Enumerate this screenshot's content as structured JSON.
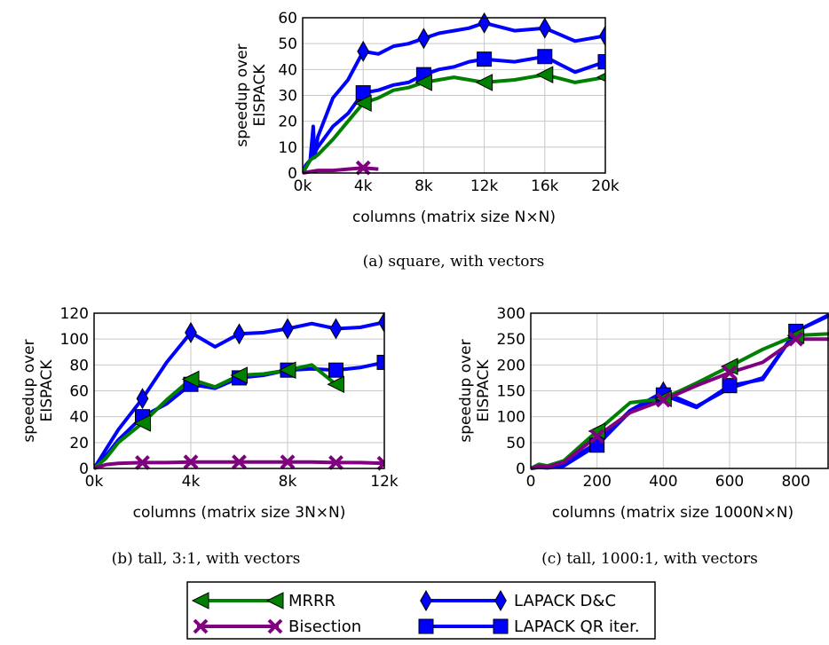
{
  "colors": {
    "mrrr": "#008000",
    "bisection": "#800080",
    "lapack_dc": "#0000FF",
    "lapack_qr": "#0000FF",
    "grid": "#C8C8C8"
  },
  "legend": {
    "items": [
      {
        "key": "mrrr",
        "label": "MRRR",
        "marker": "triangle-left-icon"
      },
      {
        "key": "lapack_dc",
        "label": "LAPACK D&C",
        "marker": "diamond-icon"
      },
      {
        "key": "bisection",
        "label": "Bisection",
        "marker": "x-icon"
      },
      {
        "key": "lapack_qr",
        "label": "LAPACK QR iter.",
        "marker": "square-icon"
      }
    ]
  },
  "chart_data": [
    {
      "type": "line",
      "caption": "(a) square, with vectors",
      "ylabel_lines": [
        "speedup over",
        "EISPACK"
      ],
      "xlabel": "columns (matrix size N×N)",
      "xlim": [
        0,
        20000
      ],
      "ylim": [
        0,
        60
      ],
      "xticks": [
        0,
        4000,
        8000,
        12000,
        16000,
        20000
      ],
      "xtick_labels": [
        "0k",
        "4k",
        "8k",
        "12k",
        "16k",
        "20k"
      ],
      "yticks": [
        0,
        10,
        20,
        30,
        40,
        50,
        60
      ],
      "ytick_labels": [
        "0",
        "10",
        "20",
        "30",
        "40",
        "50",
        "60"
      ],
      "grid": true,
      "series": [
        {
          "key": "mrrr",
          "name": "MRRR",
          "marker": "triangle-left",
          "x": [
            0,
            200,
            500,
            1000,
            2000,
            3000,
            4000,
            5000,
            6000,
            7000,
            8000,
            9000,
            10000,
            11000,
            12000,
            14000,
            16000,
            18000,
            20000
          ],
          "y": [
            0,
            2,
            5,
            7,
            13,
            20,
            27,
            29,
            32,
            33,
            35,
            36,
            37,
            36,
            35,
            36,
            38,
            35,
            37
          ],
          "markers_at": [
            4000,
            8000,
            12000,
            16000,
            20000
          ]
        },
        {
          "key": "lapack_dc",
          "name": "LAPACK D&C",
          "marker": "diamond",
          "x": [
            0,
            200,
            500,
            700,
            800,
            1000,
            2000,
            3000,
            4000,
            5000,
            6000,
            7000,
            8000,
            9000,
            10000,
            11000,
            12000,
            14000,
            16000,
            18000,
            20000
          ],
          "y": [
            0,
            3,
            5,
            18,
            6,
            14,
            29,
            36,
            47,
            46,
            49,
            50,
            52,
            54,
            55,
            56,
            58,
            55,
            56,
            51,
            53
          ],
          "markers_at": [
            4000,
            8000,
            12000,
            16000,
            20000
          ]
        },
        {
          "key": "lapack_qr",
          "name": "LAPACK QR iter.",
          "marker": "square",
          "x": [
            0,
            200,
            500,
            1000,
            2000,
            3000,
            4000,
            5000,
            6000,
            7000,
            8000,
            9000,
            10000,
            11000,
            12000,
            14000,
            16000,
            18000,
            20000
          ],
          "y": [
            0,
            2,
            5,
            10,
            18,
            23,
            31,
            32,
            34,
            35,
            38,
            40,
            41,
            43,
            44,
            43,
            45,
            39,
            43
          ],
          "markers_at": [
            4000,
            8000,
            12000,
            16000,
            20000
          ]
        },
        {
          "key": "bisection",
          "name": "Bisection",
          "marker": "x",
          "x": [
            0,
            500,
            1000,
            2000,
            3000,
            4000,
            5000
          ],
          "y": [
            0,
            0.5,
            1,
            1,
            1.5,
            2,
            1.5
          ],
          "markers_at": [
            4000
          ]
        }
      ]
    },
    {
      "type": "line",
      "caption": "(b) tall, 3:1, with vectors",
      "ylabel_lines": [
        "speedup over",
        "EISPACK"
      ],
      "xlabel": "columns (matrix size 3N×N)",
      "xlim": [
        0,
        12000
      ],
      "ylim": [
        0,
        120
      ],
      "xticks": [
        0,
        4000,
        8000,
        12000
      ],
      "xtick_labels": [
        "0k",
        "4k",
        "8k",
        "12k"
      ],
      "yticks": [
        0,
        20,
        40,
        60,
        80,
        100,
        120
      ],
      "ytick_labels": [
        "0",
        "20",
        "40",
        "60",
        "80",
        "100",
        "120"
      ],
      "grid": true,
      "series": [
        {
          "key": "mrrr",
          "name": "MRRR",
          "marker": "triangle-left",
          "x": [
            0,
            500,
            1000,
            2000,
            3000,
            4000,
            5000,
            6000,
            7000,
            8000,
            9000,
            10000
          ],
          "y": [
            0,
            8,
            20,
            35,
            53,
            69,
            63,
            72,
            73,
            76,
            80,
            65
          ],
          "markers_at": [
            2000,
            4000,
            6000,
            8000,
            10000
          ]
        },
        {
          "key": "lapack_dc",
          "name": "LAPACK D&C",
          "marker": "diamond",
          "x": [
            0,
            500,
            1000,
            2000,
            3000,
            4000,
            5000,
            6000,
            7000,
            8000,
            9000,
            10000,
            11000,
            12000
          ],
          "y": [
            0,
            15,
            30,
            54,
            82,
            105,
            94,
            104,
            105,
            108,
            112,
            108,
            109,
            113
          ],
          "markers_at": [
            2000,
            4000,
            6000,
            8000,
            10000,
            12000
          ]
        },
        {
          "key": "lapack_qr",
          "name": "LAPACK QR iter.",
          "marker": "square",
          "x": [
            0,
            500,
            1000,
            2000,
            3000,
            4000,
            5000,
            6000,
            7000,
            8000,
            9000,
            10000,
            11000,
            12000
          ],
          "y": [
            0,
            10,
            22,
            40,
            50,
            65,
            62,
            70,
            72,
            76,
            77,
            76,
            78,
            82
          ],
          "markers_at": [
            2000,
            4000,
            6000,
            8000,
            10000,
            12000
          ]
        },
        {
          "key": "bisection",
          "name": "Bisection",
          "marker": "x",
          "x": [
            0,
            500,
            1000,
            2000,
            3000,
            4000,
            5000,
            6000,
            7000,
            8000,
            9000,
            10000,
            11000,
            12000
          ],
          "y": [
            0,
            3,
            4,
            4.5,
            4.5,
            5,
            5,
            5,
            5,
            5,
            5,
            4.5,
            4.5,
            4
          ],
          "markers_at": [
            2000,
            4000,
            6000,
            8000,
            10000,
            12000
          ]
        }
      ]
    },
    {
      "type": "line",
      "caption": "(c) tall, 1000:1, with vectors",
      "ylabel_lines": [
        "speedup over",
        "EISPACK"
      ],
      "xlabel": "columns (matrix size 1000N×N)",
      "xlim": [
        0,
        900
      ],
      "ylim": [
        0,
        300
      ],
      "xticks": [
        0,
        200,
        400,
        600,
        800
      ],
      "xtick_labels": [
        "0",
        "200",
        "400",
        "600",
        "800"
      ],
      "yticks": [
        0,
        50,
        100,
        150,
        200,
        250,
        300
      ],
      "ytick_labels": [
        "0",
        "50",
        "100",
        "150",
        "200",
        "250",
        "300"
      ],
      "grid": true,
      "series": [
        {
          "key": "mrrr",
          "name": "MRRR",
          "marker": "triangle-left",
          "x": [
            0,
            25,
            50,
            100,
            200,
            300,
            400,
            500,
            600,
            700,
            800,
            900
          ],
          "y": [
            0,
            8,
            5,
            15,
            72,
            127,
            135,
            165,
            197,
            230,
            257,
            260
          ],
          "markers_at": [
            200,
            400,
            600,
            800
          ]
        },
        {
          "key": "bisection",
          "name": "Bisection",
          "marker": "x",
          "x": [
            0,
            25,
            50,
            100,
            200,
            300,
            400,
            500,
            600,
            700,
            800,
            900
          ],
          "y": [
            0,
            5,
            3,
            12,
            62,
            108,
            132,
            160,
            185,
            205,
            250,
            250
          ],
          "markers_at": [
            200,
            400,
            600,
            800
          ]
        },
        {
          "key": "lapack_qr",
          "name": "LAPACK QR iter.",
          "marker": "square",
          "x": [
            0,
            25,
            50,
            100,
            200,
            300,
            400,
            500,
            600,
            700,
            800,
            900
          ],
          "y": [
            0,
            2,
            1,
            5,
            45,
            110,
            142,
            118,
            160,
            172,
            265,
            295
          ],
          "markers_at": [
            200,
            400,
            600,
            800
          ]
        },
        {
          "key": "lapack_dc",
          "name": "LAPACK D&C",
          "marker": "diamond",
          "x": [
            0,
            25,
            50,
            100,
            200,
            300,
            400,
            500,
            600,
            700,
            800,
            900
          ],
          "y": [
            0,
            3,
            2,
            8,
            50,
            112,
            148,
            120,
            155,
            175,
            265,
            297
          ],
          "markers_at": [
            400
          ]
        }
      ]
    }
  ]
}
